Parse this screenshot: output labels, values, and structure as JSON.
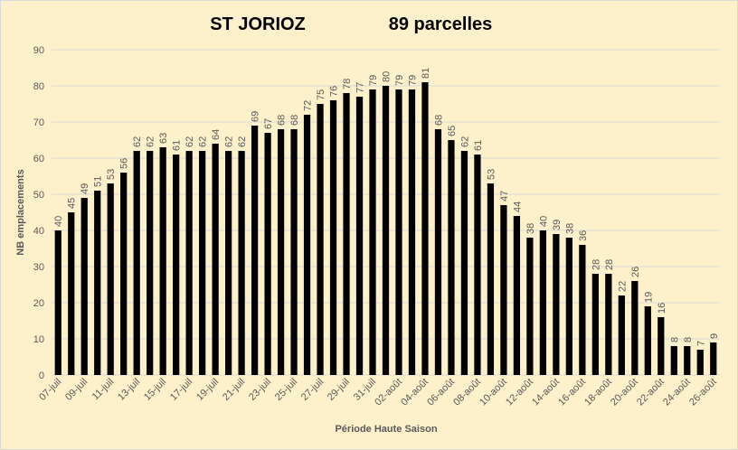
{
  "chart_data": {
    "type": "bar",
    "title": "ST JORIOZ",
    "subtitle": "89 parcelles",
    "xlabel": "Période Haute Saison",
    "ylabel": "NB emplacements",
    "categories": [
      "07-juil",
      null,
      "09-juil",
      null,
      "11-juil",
      null,
      "13-juil",
      null,
      "15-juil",
      null,
      "17-juil",
      null,
      "19-juil",
      null,
      "21-juil",
      null,
      "23-juil",
      null,
      "25-juil",
      null,
      "27-juil",
      null,
      "29-juil",
      null,
      "31-juil",
      null,
      "02-août",
      null,
      "04-août",
      null,
      "06-août",
      null,
      "08-août",
      null,
      "10-août",
      null,
      "12-août",
      null,
      "14-août",
      null,
      "16-août",
      null,
      "18-août",
      null,
      "20-août",
      null,
      "22-août",
      null,
      "24-août",
      null,
      "26-août"
    ],
    "values": [
      40,
      45,
      49,
      51,
      53,
      56,
      62,
      62,
      63,
      61,
      62,
      62,
      64,
      62,
      62,
      69,
      67,
      68,
      68,
      72,
      75,
      76,
      78,
      77,
      79,
      80,
      79,
      79,
      81,
      68,
      65,
      62,
      61,
      53,
      47,
      44,
      38,
      40,
      39,
      38,
      36,
      28,
      28,
      22,
      26,
      19,
      16,
      8,
      8,
      7,
      9
    ],
    "color": "#000000",
    "ylim": [
      0,
      90
    ],
    "yticks": [
      0,
      10,
      20,
      30,
      40,
      50,
      60,
      70,
      80,
      90
    ],
    "grid": true
  }
}
